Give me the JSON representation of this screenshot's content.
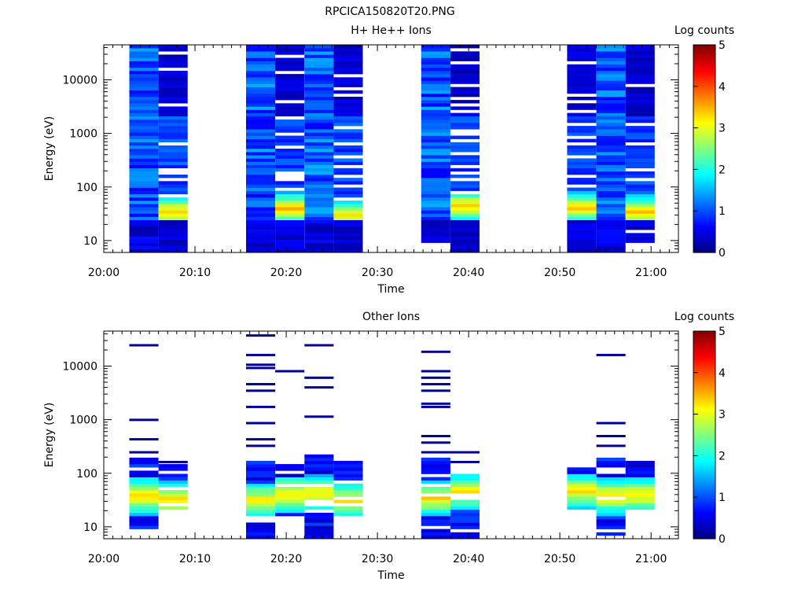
{
  "figure_title": "RPCICA150820T20.PNG",
  "chart_data": [
    {
      "type": "heatmap",
      "title": "H+ He++ Ions",
      "xlabel": "Time",
      "ylabel": "Energy (eV)",
      "colorbar_label": "Log counts",
      "x_ticks": [
        "20:00",
        "20:10",
        "20:20",
        "20:30",
        "20:40",
        "20:50",
        "21:00"
      ],
      "x_range_minutes": [
        0,
        63
      ],
      "y_scale": "log",
      "y_ticks": [
        "10",
        "100",
        "1000",
        "10000"
      ],
      "ylim": [
        6,
        45000
      ],
      "zlim": [
        0,
        5
      ],
      "z_ticks": [
        "0",
        "1",
        "2",
        "3",
        "4",
        "5"
      ],
      "colormap": "jet",
      "columns": [
        {
          "start": 2.8,
          "end": 6.0,
          "emin": 6,
          "emax": 45000,
          "hot": false
        },
        {
          "start": 6.0,
          "end": 9.2,
          "emin": 6,
          "emax": 45000,
          "hot": true,
          "peak": 35,
          "gaps": [
            70,
            130,
            180,
            220,
            650,
            3300,
            15000,
            30000
          ]
        },
        {
          "start": 15.6,
          "end": 18.8,
          "emin": 6,
          "emax": 45000,
          "hot": false
        },
        {
          "start": 18.8,
          "end": 22.0,
          "emin": 6,
          "emax": 45000,
          "hot": true,
          "peak": 40,
          "gaps": [
            85,
            130,
            170,
            190,
            550,
            1000,
            2000,
            4200,
            14000,
            28000
          ]
        },
        {
          "start": 22.0,
          "end": 25.2,
          "emin": 6,
          "emax": 45000,
          "hot": false
        },
        {
          "start": 25.2,
          "end": 28.4,
          "emin": 6,
          "emax": 45000,
          "hot": true,
          "peak": 30,
          "gaps": [
            60,
            110,
            150,
            250,
            350,
            650,
            1200,
            5000,
            6500,
            12000
          ]
        },
        {
          "start": 34.8,
          "end": 38.0,
          "emin": 9.5,
          "emax": 45000,
          "hot": false
        },
        {
          "start": 38.0,
          "end": 41.2,
          "emin": 6,
          "emax": 45000,
          "hot": true,
          "peak": 45,
          "gaps": [
            80,
            130,
            175,
            250,
            400,
            750,
            950,
            1100,
            2600,
            3300,
            4700,
            7500,
            20000,
            38000
          ]
        },
        {
          "start": 50.8,
          "end": 54.0,
          "emin": 6,
          "emax": 45000,
          "hot": true,
          "peak": 40,
          "gaps": [
            110,
            170,
            350,
            650,
            850,
            1400,
            2700,
            4200,
            5300,
            21000
          ]
        },
        {
          "start": 54.0,
          "end": 57.2,
          "emin": 6,
          "emax": 45000,
          "hot": false
        },
        {
          "start": 57.2,
          "end": 60.4,
          "emin": 9,
          "emax": 45000,
          "hot": true,
          "peak": 35,
          "gaps": [
            14,
            130,
            210,
            600,
            1500,
            7500
          ]
        }
      ]
    },
    {
      "type": "heatmap",
      "title": "Other Ions",
      "xlabel": "Time",
      "ylabel": "Energy (eV)",
      "colorbar_label": "Log counts",
      "x_ticks": [
        "20:00",
        "20:10",
        "20:20",
        "20:30",
        "20:40",
        "20:50",
        "21:00"
      ],
      "x_range_minutes": [
        0,
        63
      ],
      "y_scale": "log",
      "y_ticks": [
        "10",
        "100",
        "1000",
        "10000"
      ],
      "ylim": [
        6,
        45000
      ],
      "zlim": [
        0,
        5
      ],
      "z_ticks": [
        "0",
        "1",
        "2",
        "3",
        "4",
        "5"
      ],
      "colormap": "jet",
      "columns": [
        {
          "start": 2.8,
          "end": 6.0,
          "dense": [
            9.5,
            200
          ],
          "peak": 38,
          "lines": [
            230,
            450,
            950,
            25000
          ]
        },
        {
          "start": 6.0,
          "end": 9.2,
          "dense": [
            20,
            150
          ],
          "peak": 32,
          "lines": [
            150
          ]
        },
        {
          "start": 15.6,
          "end": 18.8,
          "dense": [
            6,
            220
          ],
          "peak": 30,
          "lines": [
            300,
            450,
            900,
            1800,
            3200,
            4800,
            8500,
            11000,
            16000,
            36000
          ]
        },
        {
          "start": 18.8,
          "end": 22.0,
          "dense": [
            15,
            150
          ],
          "peak": 40,
          "lines": [
            7500
          ]
        },
        {
          "start": 22.0,
          "end": 25.2,
          "dense": [
            6,
            220
          ],
          "peak": 42,
          "lines": [
            1100,
            3700,
            6000,
            24000
          ]
        },
        {
          "start": 25.2,
          "end": 28.4,
          "dense": [
            15,
            170
          ],
          "peak": 30,
          "lines": []
        },
        {
          "start": 34.8,
          "end": 38.0,
          "dense": [
            6,
            200
          ],
          "peak": 35,
          "lines": [
            250,
            350,
            500,
            1600,
            2000,
            3200,
            4700,
            6300,
            7900,
            18000
          ]
        },
        {
          "start": 38.0,
          "end": 41.2,
          "dense": [
            6,
            100
          ],
          "peak": 45,
          "lines": [
            150,
            230
          ]
        },
        {
          "start": 50.8,
          "end": 54.0,
          "dense": [
            20,
            130
          ],
          "peak": 45,
          "lines": []
        },
        {
          "start": 54.0,
          "end": 57.2,
          "dense": [
            6,
            200
          ],
          "peak": 38,
          "lines": [
            300,
            500,
            800,
            16000
          ]
        },
        {
          "start": 57.2,
          "end": 60.4,
          "dense": [
            20,
            170
          ],
          "peak": 38,
          "lines": []
        }
      ]
    }
  ]
}
